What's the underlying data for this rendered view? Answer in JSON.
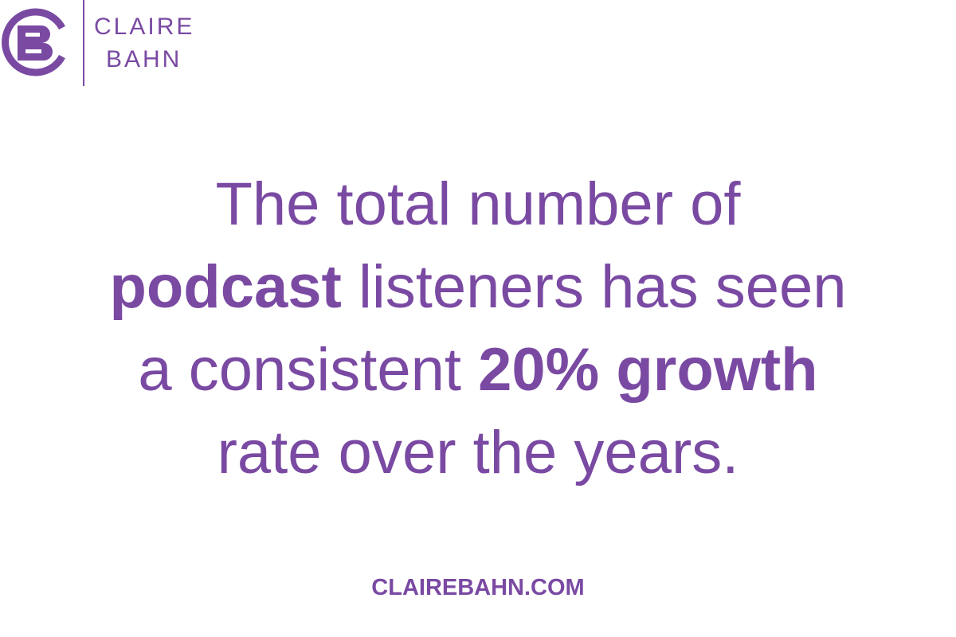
{
  "logo": {
    "name_lines": [
      "CLAIRE",
      "BAHN"
    ]
  },
  "quote": {
    "color": "#7a4aa3",
    "lines": [
      [
        {
          "text": "The total number of",
          "bold": false
        }
      ],
      [
        {
          "text": "podcast",
          "bold": true
        },
        {
          "text": " listeners has seen",
          "bold": false
        }
      ],
      [
        {
          "text": "a consistent ",
          "bold": false
        },
        {
          "text": "20% growth",
          "bold": true
        }
      ],
      [
        {
          "text": "rate over the years.",
          "bold": false
        }
      ]
    ]
  },
  "footer": {
    "text": "CLAIREBAHN.COM"
  }
}
